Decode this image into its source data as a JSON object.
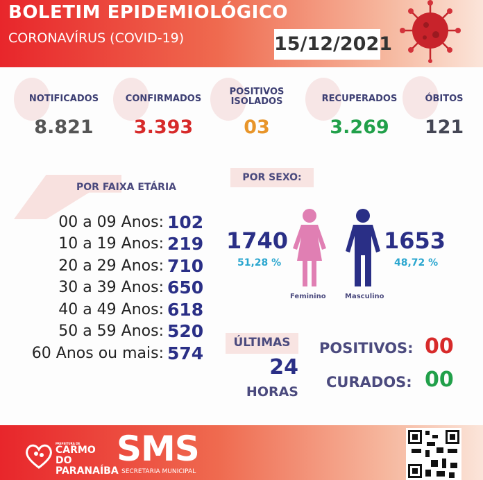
{
  "header": {
    "title": "BOLETIM EPIDEMIOLÓGICO",
    "subtitle": "CORONAVÍRUS (COVID-19)",
    "date": "15/12/2021",
    "icon": "virus-icon"
  },
  "stats": [
    {
      "label": "NOTIFICADOS",
      "value": "8.821",
      "color": "#555555"
    },
    {
      "label": "CONFIRMADOS",
      "value": "3.393",
      "color": "#d72a2a"
    },
    {
      "label": "POSITIVOS ISOLADOS",
      "value": "03",
      "color": "#e8952a"
    },
    {
      "label": "RECUPERADOS",
      "value": "3.269",
      "color": "#21a04a"
    },
    {
      "label": "ÓBITOS",
      "value": "121",
      "color": "#444654"
    }
  ],
  "age": {
    "title": "POR FAIXA ETÁRIA",
    "rows": [
      {
        "label": "00 a 09 Anos:",
        "value": "102"
      },
      {
        "label": "10 a 19 Anos:",
        "value": "219"
      },
      {
        "label": "20 a 29 Anos:",
        "value": "710"
      },
      {
        "label": "30 a 39 Anos:",
        "value": "650"
      },
      {
        "label": "40 a 49 Anos:",
        "value": "618"
      },
      {
        "label": "50 a 59 Anos:",
        "value": "520"
      },
      {
        "label": "60 Anos ou mais:",
        "value": "574"
      }
    ]
  },
  "sex": {
    "title": "POR SEXO:",
    "female": {
      "value": "1740",
      "pct": "51,28 %",
      "label": "Feminino",
      "color": "#e07fb3"
    },
    "male": {
      "value": "1653",
      "pct": "48,72 %",
      "label": "Masculino",
      "color": "#2a2f86"
    }
  },
  "last24": {
    "line1": "ÚLTIMAS",
    "line2": "24",
    "line3": "HORAS",
    "positivos_label": "POSITIVOS:",
    "positivos_value": "00",
    "curados_label": "CURADOS:",
    "curados_value": "00"
  },
  "footer": {
    "city_small": "PREFEITURA DE",
    "city": "CARMO DO PARANAÍBA",
    "sms": "SMS",
    "secretaria": "SECRETARIA MUNICIPAL",
    "qr": "qr-code-icon"
  }
}
